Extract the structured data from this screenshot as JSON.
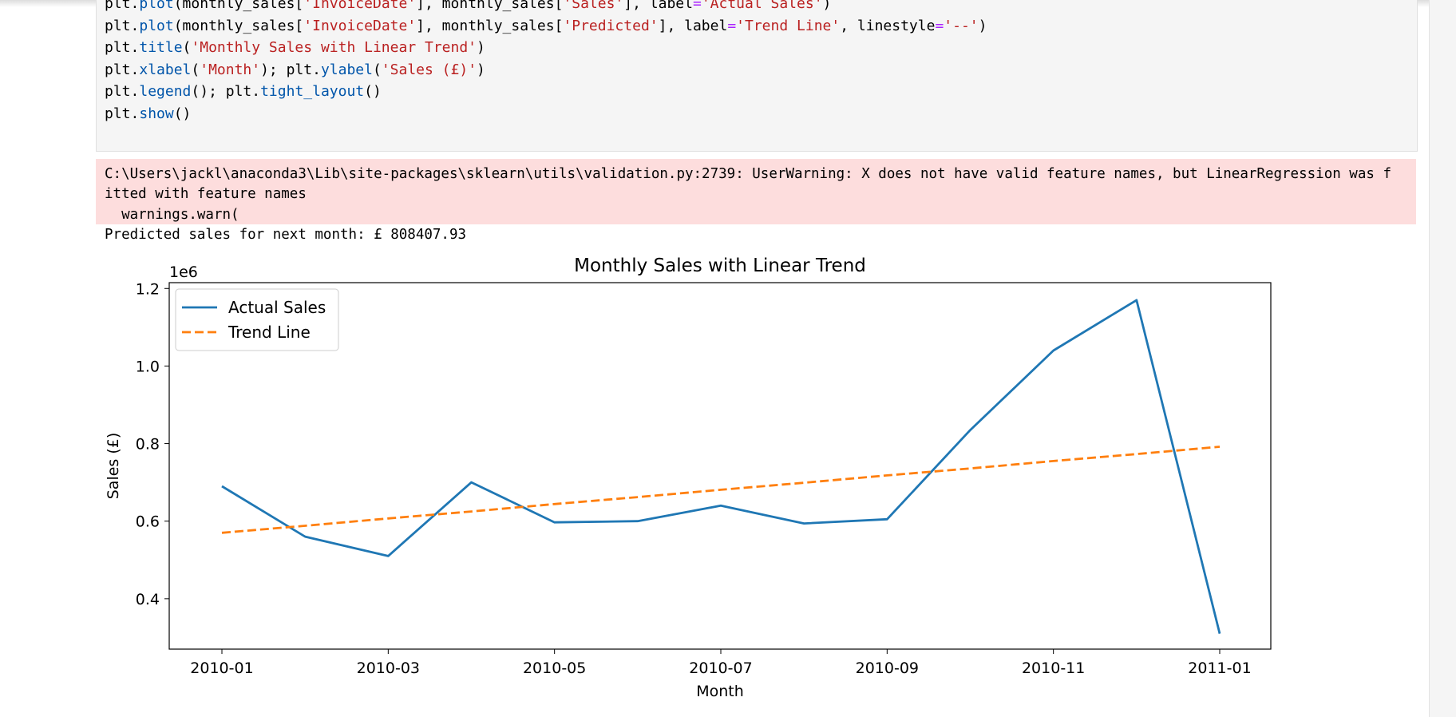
{
  "code_cell": {
    "lines": [
      [
        {
          "t": "plt.",
          "c": "p"
        },
        {
          "t": "plot",
          "c": "f"
        },
        {
          "t": "(monthly_sales[",
          "c": "p"
        },
        {
          "t": "'InvoiceDate'",
          "c": "s"
        },
        {
          "t": "], monthly_sales[",
          "c": "p"
        },
        {
          "t": "'Sales'",
          "c": "s"
        },
        {
          "t": "], label",
          "c": "p"
        },
        {
          "t": "=",
          "c": "k"
        },
        {
          "t": "'Actual Sales'",
          "c": "s"
        },
        {
          "t": ")",
          "c": "p"
        }
      ],
      [
        {
          "t": "plt.",
          "c": "p"
        },
        {
          "t": "plot",
          "c": "f"
        },
        {
          "t": "(monthly_sales[",
          "c": "p"
        },
        {
          "t": "'InvoiceDate'",
          "c": "s"
        },
        {
          "t": "], monthly_sales[",
          "c": "p"
        },
        {
          "t": "'Predicted'",
          "c": "s"
        },
        {
          "t": "], label",
          "c": "p"
        },
        {
          "t": "=",
          "c": "k"
        },
        {
          "t": "'Trend Line'",
          "c": "s"
        },
        {
          "t": ", linestyle",
          "c": "p"
        },
        {
          "t": "=",
          "c": "k"
        },
        {
          "t": "'--'",
          "c": "s"
        },
        {
          "t": ")",
          "c": "p"
        }
      ],
      [
        {
          "t": "plt.",
          "c": "p"
        },
        {
          "t": "title",
          "c": "f"
        },
        {
          "t": "(",
          "c": "p"
        },
        {
          "t": "'Monthly Sales with Linear Trend'",
          "c": "s"
        },
        {
          "t": ")",
          "c": "p"
        }
      ],
      [
        {
          "t": "plt.",
          "c": "p"
        },
        {
          "t": "xlabel",
          "c": "f"
        },
        {
          "t": "(",
          "c": "p"
        },
        {
          "t": "'Month'",
          "c": "s"
        },
        {
          "t": "); plt.",
          "c": "p"
        },
        {
          "t": "ylabel",
          "c": "f"
        },
        {
          "t": "(",
          "c": "p"
        },
        {
          "t": "'Sales (£)'",
          "c": "s"
        },
        {
          "t": ")",
          "c": "p"
        }
      ],
      [
        {
          "t": "plt.",
          "c": "p"
        },
        {
          "t": "legend",
          "c": "f"
        },
        {
          "t": "(); plt.",
          "c": "p"
        },
        {
          "t": "tight_layout",
          "c": "f"
        },
        {
          "t": "()",
          "c": "p"
        }
      ],
      [
        {
          "t": "plt.",
          "c": "p"
        },
        {
          "t": "show",
          "c": "f"
        },
        {
          "t": "()",
          "c": "p"
        }
      ]
    ]
  },
  "stderr": {
    "line1": "C:\\Users\\jackl\\anaconda3\\Lib\\site-packages\\sklearn\\utils\\validation.py:2739: UserWarning: X does not have valid feature names, but LinearRegression was f",
    "line2": "itted with feature names",
    "line3": "  warnings.warn("
  },
  "stdout": {
    "prediction": "Predicted sales for next month: £ 808407.93"
  },
  "colors": {
    "actual": "#1f77b4",
    "trend": "#ff7f0e",
    "stderr_bg": "#fddddd"
  },
  "chart_data": {
    "type": "line",
    "title": "Monthly Sales with Linear Trend",
    "xlabel": "Month",
    "ylabel": "Sales (£)",
    "y_offset_label": "1e6",
    "x": [
      "2010-01",
      "2010-02",
      "2010-03",
      "2010-04",
      "2010-05",
      "2010-06",
      "2010-07",
      "2010-08",
      "2010-09",
      "2010-10",
      "2010-11",
      "2010-12",
      "2011-01"
    ],
    "x_ticks": [
      "2010-01",
      "2010-03",
      "2010-05",
      "2010-07",
      "2010-09",
      "2010-11",
      "2011-01"
    ],
    "y_ticks": [
      "0.4",
      "0.6",
      "0.8",
      "1.0",
      "1.2"
    ],
    "ylim": [
      0.27,
      1.215
    ],
    "series": [
      {
        "name": "Actual Sales",
        "style": "solid",
        "values": [
          0.69,
          0.56,
          0.51,
          0.7,
          0.597,
          0.6,
          0.64,
          0.594,
          0.605,
          0.835,
          1.04,
          1.17,
          0.31
        ]
      },
      {
        "name": "Trend Line",
        "style": "dashed",
        "values": [
          0.57,
          0.588,
          0.607,
          0.625,
          0.644,
          0.662,
          0.681,
          0.699,
          0.718,
          0.736,
          0.755,
          0.773,
          0.792
        ]
      }
    ],
    "legend_loc": "upper left",
    "grid": false
  }
}
